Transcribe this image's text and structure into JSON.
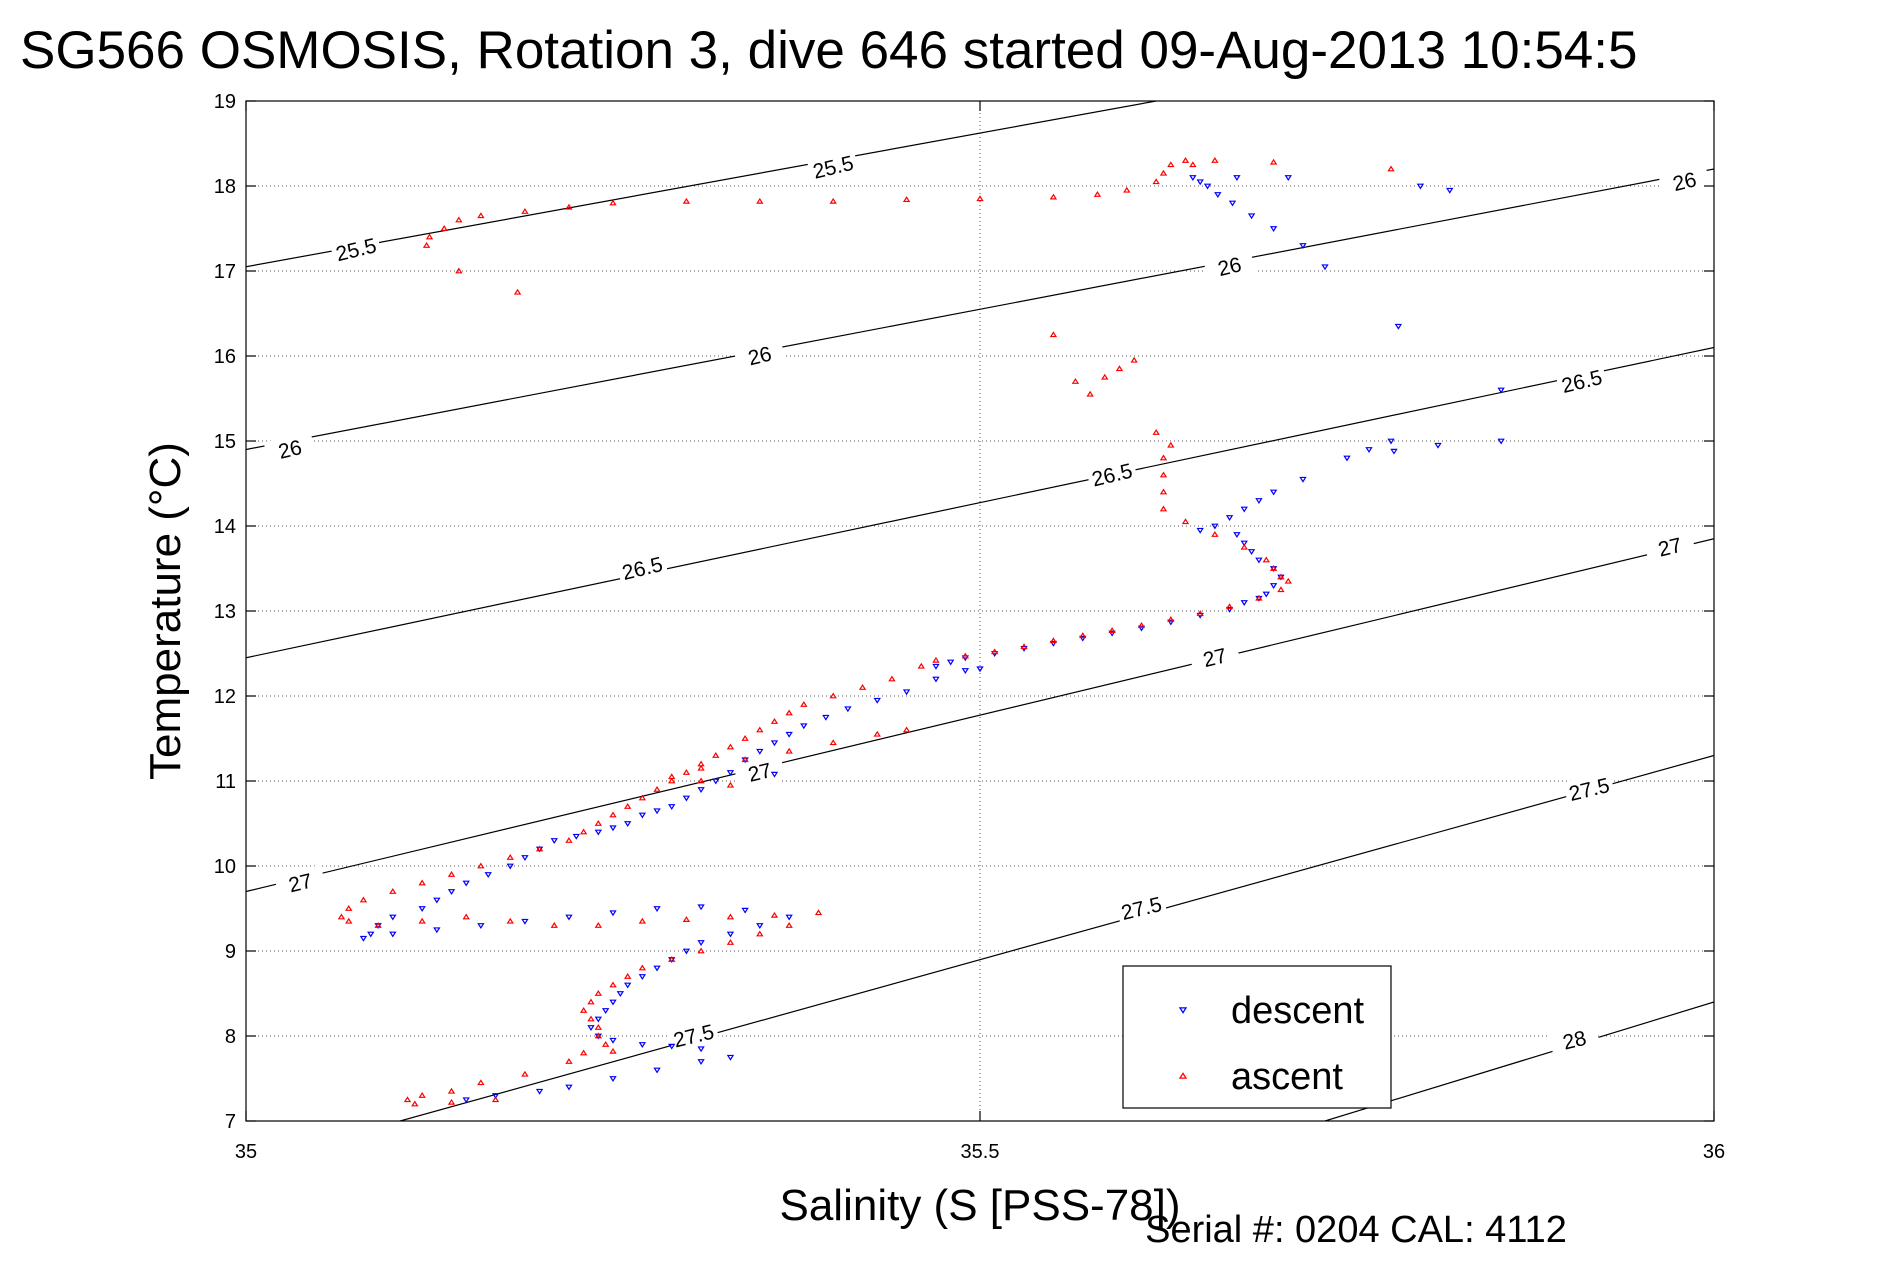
{
  "chart_data": {
    "type": "scatter",
    "title": "SG566 OSMOSIS, Rotation 3, dive 646 started 09-Aug-2013 10:54:5",
    "xlabel": "Salinity (S [PSS-78])",
    "ylabel": "Temperature (°C)",
    "footer": "Serial #: 0204  CAL: 4112",
    "xlim": [
      35,
      36
    ],
    "ylim": [
      7,
      19
    ],
    "x_ticks": [
      "35",
      "35.5",
      "36"
    ],
    "y_ticks": [
      "7",
      "8",
      "9",
      "10",
      "11",
      "12",
      "13",
      "14",
      "15",
      "16",
      "17",
      "18",
      "19"
    ],
    "grid": true,
    "legend_position": "bottom-right",
    "contours": [
      {
        "label": "25.5",
        "x": [
          35.0,
          35.62
        ],
        "y": [
          17.05,
          19.0
        ]
      },
      {
        "label": "26",
        "x": [
          35.0,
          36.0
        ],
        "y": [
          14.9,
          18.2
        ]
      },
      {
        "label": "26.5",
        "x": [
          35.0,
          36.0
        ],
        "y": [
          12.45,
          16.1
        ]
      },
      {
        "label": "27",
        "x": [
          35.0,
          36.0
        ],
        "y": [
          9.7,
          13.85
        ]
      },
      {
        "label": "27.5",
        "x": [
          35.105,
          36.0
        ],
        "y": [
          7.0,
          11.3
        ]
      },
      {
        "label": "28",
        "x": [
          35.735,
          36.0
        ],
        "y": [
          7.0,
          8.4
        ]
      }
    ],
    "contour_labels": [
      {
        "text": "25.5",
        "x": 35.075,
        "y": 17.25
      },
      {
        "text": "25.5",
        "x": 35.4,
        "y": 18.22
      },
      {
        "text": "26",
        "x": 35.03,
        "y": 14.9
      },
      {
        "text": "26",
        "x": 35.35,
        "y": 16.0
      },
      {
        "text": "26",
        "x": 35.67,
        "y": 17.05
      },
      {
        "text": "26",
        "x": 35.98,
        "y": 18.05
      },
      {
        "text": "26.5",
        "x": 35.27,
        "y": 13.5
      },
      {
        "text": "26.5",
        "x": 35.59,
        "y": 14.6
      },
      {
        "text": "26.5",
        "x": 35.91,
        "y": 15.7
      },
      {
        "text": "27",
        "x": 35.037,
        "y": 9.8
      },
      {
        "text": "27",
        "x": 35.35,
        "y": 11.1
      },
      {
        "text": "27",
        "x": 35.66,
        "y": 12.45
      },
      {
        "text": "27",
        "x": 35.97,
        "y": 13.75
      },
      {
        "text": "27.5",
        "x": 35.305,
        "y": 8.0
      },
      {
        "text": "27.5",
        "x": 35.61,
        "y": 9.5
      },
      {
        "text": "27.5",
        "x": 35.915,
        "y": 10.9
      },
      {
        "text": "28",
        "x": 35.905,
        "y": 7.95
      }
    ],
    "series": [
      {
        "name": "descent",
        "color": "#0000ff",
        "marker": "triangle-down",
        "points": [
          [
            35.645,
            18.1
          ],
          [
            35.65,
            18.05
          ],
          [
            35.655,
            18.0
          ],
          [
            35.662,
            17.9
          ],
          [
            35.672,
            17.8
          ],
          [
            35.685,
            17.65
          ],
          [
            35.7,
            17.5
          ],
          [
            35.72,
            17.3
          ],
          [
            35.735,
            17.05
          ],
          [
            35.675,
            18.1
          ],
          [
            35.71,
            18.1
          ],
          [
            35.8,
            18.0
          ],
          [
            35.82,
            17.95
          ],
          [
            35.785,
            16.35
          ],
          [
            35.855,
            15.6
          ],
          [
            35.78,
            15.0
          ],
          [
            35.765,
            14.9
          ],
          [
            35.75,
            14.8
          ],
          [
            35.72,
            14.55
          ],
          [
            35.7,
            14.4
          ],
          [
            35.69,
            14.3
          ],
          [
            35.68,
            14.2
          ],
          [
            35.67,
            14.1
          ],
          [
            35.66,
            14.0
          ],
          [
            35.65,
            13.95
          ],
          [
            35.855,
            15.0
          ],
          [
            35.812,
            14.95
          ],
          [
            35.782,
            14.88
          ],
          [
            35.675,
            13.9
          ],
          [
            35.68,
            13.8
          ],
          [
            35.685,
            13.7
          ],
          [
            35.69,
            13.6
          ],
          [
            35.7,
            13.5
          ],
          [
            35.705,
            13.4
          ],
          [
            35.7,
            13.3
          ],
          [
            35.695,
            13.2
          ],
          [
            35.69,
            13.15
          ],
          [
            35.68,
            13.1
          ],
          [
            35.67,
            13.02
          ],
          [
            35.65,
            12.95
          ],
          [
            35.63,
            12.87
          ],
          [
            35.61,
            12.8
          ],
          [
            35.59,
            12.74
          ],
          [
            35.57,
            12.68
          ],
          [
            35.55,
            12.62
          ],
          [
            35.53,
            12.56
          ],
          [
            35.51,
            12.5
          ],
          [
            35.49,
            12.45
          ],
          [
            35.48,
            12.4
          ],
          [
            35.47,
            12.35
          ],
          [
            35.5,
            12.32
          ],
          [
            35.49,
            12.3
          ],
          [
            35.47,
            12.2
          ],
          [
            35.45,
            12.05
          ],
          [
            35.43,
            11.95
          ],
          [
            35.41,
            11.85
          ],
          [
            35.395,
            11.75
          ],
          [
            35.38,
            11.65
          ],
          [
            35.37,
            11.55
          ],
          [
            35.36,
            11.45
          ],
          [
            35.35,
            11.35
          ],
          [
            35.34,
            11.25
          ],
          [
            35.33,
            11.1
          ],
          [
            35.36,
            11.08
          ],
          [
            35.32,
            11.0
          ],
          [
            35.31,
            10.9
          ],
          [
            35.3,
            10.8
          ],
          [
            35.29,
            10.7
          ],
          [
            35.28,
            10.65
          ],
          [
            35.27,
            10.6
          ],
          [
            35.26,
            10.5
          ],
          [
            35.25,
            10.45
          ],
          [
            35.24,
            10.4
          ],
          [
            35.225,
            10.35
          ],
          [
            35.21,
            10.3
          ],
          [
            35.2,
            10.2
          ],
          [
            35.19,
            10.1
          ],
          [
            35.18,
            10.0
          ],
          [
            35.165,
            9.9
          ],
          [
            35.15,
            9.8
          ],
          [
            35.14,
            9.7
          ],
          [
            35.13,
            9.6
          ],
          [
            35.12,
            9.5
          ],
          [
            35.1,
            9.4
          ],
          [
            35.09,
            9.3
          ],
          [
            35.085,
            9.2
          ],
          [
            35.08,
            9.15
          ],
          [
            35.1,
            9.2
          ],
          [
            35.13,
            9.25
          ],
          [
            35.16,
            9.3
          ],
          [
            35.19,
            9.35
          ],
          [
            35.22,
            9.4
          ],
          [
            35.25,
            9.45
          ],
          [
            35.28,
            9.5
          ],
          [
            35.31,
            9.52
          ],
          [
            35.34,
            9.48
          ],
          [
            35.37,
            9.4
          ],
          [
            35.35,
            9.3
          ],
          [
            35.33,
            9.2
          ],
          [
            35.31,
            9.1
          ],
          [
            35.3,
            9.0
          ],
          [
            35.29,
            8.9
          ],
          [
            35.28,
            8.8
          ],
          [
            35.27,
            8.7
          ],
          [
            35.26,
            8.6
          ],
          [
            35.255,
            8.5
          ],
          [
            35.25,
            8.4
          ],
          [
            35.245,
            8.3
          ],
          [
            35.24,
            8.2
          ],
          [
            35.235,
            8.1
          ],
          [
            35.24,
            8.0
          ],
          [
            35.25,
            7.95
          ],
          [
            35.27,
            7.9
          ],
          [
            35.29,
            7.88
          ],
          [
            35.31,
            7.85
          ],
          [
            35.33,
            7.75
          ],
          [
            35.31,
            7.7
          ],
          [
            35.28,
            7.6
          ],
          [
            35.25,
            7.5
          ],
          [
            35.22,
            7.4
          ],
          [
            35.2,
            7.35
          ],
          [
            35.17,
            7.3
          ],
          [
            35.15,
            7.25
          ]
        ]
      },
      {
        "name": "ascent",
        "color": "#ff0000",
        "marker": "triangle-up",
        "points": [
          [
            35.123,
            17.3
          ],
          [
            35.125,
            17.4
          ],
          [
            35.135,
            17.5
          ],
          [
            35.145,
            17.6
          ],
          [
            35.16,
            17.65
          ],
          [
            35.19,
            17.7
          ],
          [
            35.22,
            17.75
          ],
          [
            35.25,
            17.8
          ],
          [
            35.3,
            17.82
          ],
          [
            35.35,
            17.82
          ],
          [
            35.4,
            17.82
          ],
          [
            35.45,
            17.84
          ],
          [
            35.5,
            17.85
          ],
          [
            35.55,
            17.87
          ],
          [
            35.58,
            17.9
          ],
          [
            35.6,
            17.95
          ],
          [
            35.62,
            18.05
          ],
          [
            35.625,
            18.15
          ],
          [
            35.63,
            18.25
          ],
          [
            35.64,
            18.3
          ],
          [
            35.645,
            18.25
          ],
          [
            35.66,
            18.3
          ],
          [
            35.7,
            18.28
          ],
          [
            35.78,
            18.2
          ],
          [
            35.145,
            17.0
          ],
          [
            35.185,
            16.75
          ],
          [
            35.55,
            16.25
          ],
          [
            35.565,
            15.7
          ],
          [
            35.575,
            15.55
          ],
          [
            35.585,
            15.75
          ],
          [
            35.595,
            15.85
          ],
          [
            35.605,
            15.95
          ],
          [
            35.62,
            15.1
          ],
          [
            35.63,
            14.95
          ],
          [
            35.625,
            14.8
          ],
          [
            35.625,
            14.6
          ],
          [
            35.625,
            14.4
          ],
          [
            35.625,
            14.2
          ],
          [
            35.64,
            14.05
          ],
          [
            35.66,
            13.9
          ],
          [
            35.68,
            13.75
          ],
          [
            35.695,
            13.6
          ],
          [
            35.7,
            13.5
          ],
          [
            35.705,
            13.4
          ],
          [
            35.71,
            13.35
          ],
          [
            35.705,
            13.25
          ],
          [
            35.69,
            13.15
          ],
          [
            35.67,
            13.05
          ],
          [
            35.65,
            12.97
          ],
          [
            35.63,
            12.9
          ],
          [
            35.61,
            12.83
          ],
          [
            35.59,
            12.77
          ],
          [
            35.57,
            12.71
          ],
          [
            35.55,
            12.65
          ],
          [
            35.53,
            12.58
          ],
          [
            35.51,
            12.52
          ],
          [
            35.49,
            12.47
          ],
          [
            35.47,
            12.42
          ],
          [
            35.46,
            12.35
          ],
          [
            35.44,
            12.2
          ],
          [
            35.42,
            12.1
          ],
          [
            35.4,
            12.0
          ],
          [
            35.38,
            11.9
          ],
          [
            35.37,
            11.8
          ],
          [
            35.36,
            11.7
          ],
          [
            35.35,
            11.6
          ],
          [
            35.34,
            11.5
          ],
          [
            35.33,
            11.4
          ],
          [
            35.32,
            11.3
          ],
          [
            35.31,
            11.2
          ],
          [
            35.3,
            11.1
          ],
          [
            35.29,
            11.0
          ],
          [
            35.28,
            10.9
          ],
          [
            35.27,
            10.8
          ],
          [
            35.26,
            10.7
          ],
          [
            35.25,
            10.6
          ],
          [
            35.24,
            10.5
          ],
          [
            35.23,
            10.4
          ],
          [
            35.22,
            10.3
          ],
          [
            35.2,
            10.2
          ],
          [
            35.18,
            10.1
          ],
          [
            35.16,
            10.0
          ],
          [
            35.14,
            9.9
          ],
          [
            35.12,
            9.8
          ],
          [
            35.1,
            9.7
          ],
          [
            35.08,
            9.6
          ],
          [
            35.07,
            9.5
          ],
          [
            35.065,
            9.4
          ],
          [
            35.07,
            9.35
          ],
          [
            35.09,
            9.3
          ],
          [
            35.12,
            9.35
          ],
          [
            35.15,
            9.4
          ],
          [
            35.18,
            9.35
          ],
          [
            35.21,
            9.3
          ],
          [
            35.24,
            9.3
          ],
          [
            35.27,
            9.35
          ],
          [
            35.3,
            9.37
          ],
          [
            35.33,
            9.4
          ],
          [
            35.36,
            9.42
          ],
          [
            35.39,
            9.45
          ],
          [
            35.37,
            9.3
          ],
          [
            35.35,
            9.2
          ],
          [
            35.33,
            9.1
          ],
          [
            35.31,
            9.0
          ],
          [
            35.29,
            8.9
          ],
          [
            35.27,
            8.8
          ],
          [
            35.26,
            8.7
          ],
          [
            35.25,
            8.6
          ],
          [
            35.24,
            8.5
          ],
          [
            35.235,
            8.4
          ],
          [
            35.23,
            8.3
          ],
          [
            35.235,
            8.2
          ],
          [
            35.24,
            8.1
          ],
          [
            35.24,
            8.0
          ],
          [
            35.245,
            7.9
          ],
          [
            35.25,
            7.82
          ],
          [
            35.23,
            7.8
          ],
          [
            35.22,
            7.7
          ],
          [
            35.19,
            7.55
          ],
          [
            35.16,
            7.45
          ],
          [
            35.14,
            7.35
          ],
          [
            35.12,
            7.3
          ],
          [
            35.11,
            7.25
          ],
          [
            35.115,
            7.2
          ],
          [
            35.14,
            7.22
          ],
          [
            35.17,
            7.25
          ],
          [
            35.45,
            11.6
          ],
          [
            35.43,
            11.55
          ],
          [
            35.4,
            11.45
          ],
          [
            35.37,
            11.35
          ],
          [
            35.34,
            11.25
          ],
          [
            35.31,
            11.15
          ],
          [
            35.29,
            11.05
          ],
          [
            35.31,
            11.0
          ],
          [
            35.33,
            10.95
          ]
        ]
      }
    ]
  }
}
